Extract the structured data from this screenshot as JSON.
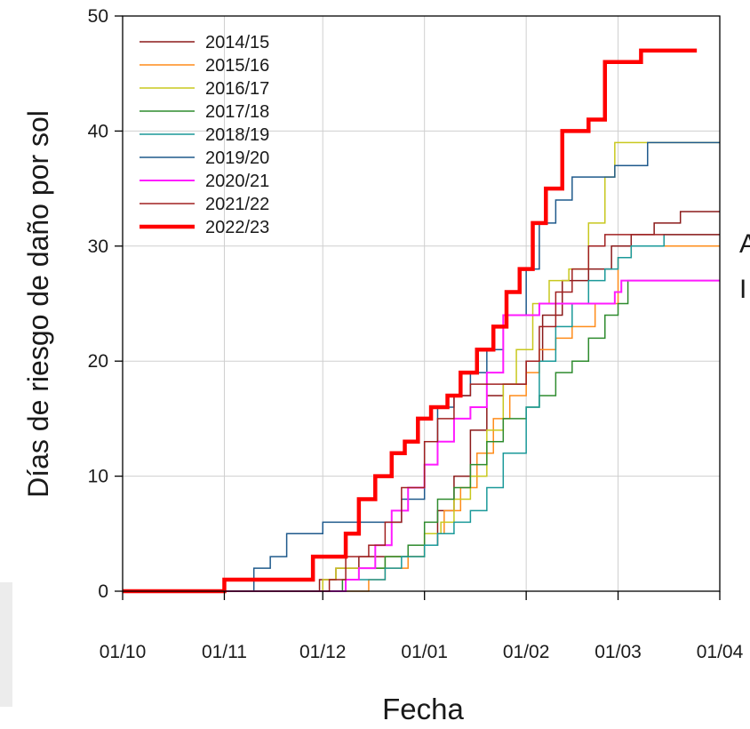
{
  "chart_data": {
    "type": "line",
    "title": "",
    "xlabel": "Fecha",
    "ylabel": "Días de riesgo de daño por sol",
    "xlim": [
      "01/10",
      "01/04"
    ],
    "ylim": [
      0,
      50
    ],
    "x_ticks": [
      "01/10",
      "01/11",
      "01/12",
      "01/01",
      "01/02",
      "01/03",
      "01/04"
    ],
    "y_ticks": [
      0,
      10,
      20,
      30,
      40,
      50
    ],
    "grid": true,
    "legend_position": "top-left",
    "series": [
      {
        "name": "2014/15",
        "color": "#8b1a1a",
        "linewidth": 1.5,
        "points": [
          [
            "01/10",
            0
          ],
          [
            "25/11",
            0
          ],
          [
            "30/11",
            1
          ],
          [
            "05/12",
            2
          ],
          [
            "12/12",
            3
          ],
          [
            "20/12",
            3
          ],
          [
            "25/12",
            3
          ],
          [
            "01/01",
            4
          ],
          [
            "05/01",
            7
          ],
          [
            "10/01",
            10
          ],
          [
            "15/01",
            14
          ],
          [
            "20/01",
            17
          ],
          [
            "25/01",
            18
          ],
          [
            "01/02",
            20
          ],
          [
            "06/02",
            24
          ],
          [
            "12/02",
            27
          ],
          [
            "20/02",
            28
          ],
          [
            "27/02",
            30
          ],
          [
            "05/03",
            31
          ],
          [
            "12/03",
            32
          ],
          [
            "20/03",
            33
          ],
          [
            "01/04",
            33
          ]
        ]
      },
      {
        "name": "2015/16",
        "color": "#ff8c1a",
        "linewidth": 1.5,
        "points": [
          [
            "01/10",
            0
          ],
          [
            "10/12",
            0
          ],
          [
            "15/12",
            1
          ],
          [
            "20/12",
            2
          ],
          [
            "27/12",
            3
          ],
          [
            "01/01",
            5
          ],
          [
            "07/01",
            7
          ],
          [
            "12/01",
            9
          ],
          [
            "17/01",
            12
          ],
          [
            "22/01",
            15
          ],
          [
            "27/01",
            17
          ],
          [
            "01/02",
            19
          ],
          [
            "05/02",
            21
          ],
          [
            "10/02",
            22
          ],
          [
            "15/02",
            23
          ],
          [
            "22/02",
            25
          ],
          [
            "01/03",
            29
          ],
          [
            "05/03",
            30
          ],
          [
            "01/04",
            30
          ]
        ]
      },
      {
        "name": "2016/17",
        "color": "#c8c81e",
        "linewidth": 1.5,
        "points": [
          [
            "01/10",
            0
          ],
          [
            "27/11",
            0
          ],
          [
            "01/12",
            1
          ],
          [
            "05/12",
            2
          ],
          [
            "15/12",
            2
          ],
          [
            "20/12",
            3
          ],
          [
            "25/12",
            3
          ],
          [
            "01/01",
            5
          ],
          [
            "06/01",
            6
          ],
          [
            "10/01",
            8
          ],
          [
            "15/01",
            10
          ],
          [
            "20/01",
            14
          ],
          [
            "25/01",
            18
          ],
          [
            "29/01",
            21
          ],
          [
            "03/02",
            25
          ],
          [
            "08/02",
            27
          ],
          [
            "14/02",
            28
          ],
          [
            "20/02",
            32
          ],
          [
            "25/02",
            36
          ],
          [
            "28/02",
            39
          ],
          [
            "01/04",
            39
          ]
        ]
      },
      {
        "name": "2017/18",
        "color": "#2e8b2e",
        "linewidth": 1.5,
        "points": [
          [
            "01/10",
            0
          ],
          [
            "03/12",
            0
          ],
          [
            "07/12",
            1
          ],
          [
            "12/12",
            2
          ],
          [
            "20/12",
            3
          ],
          [
            "27/12",
            4
          ],
          [
            "01/01",
            6
          ],
          [
            "05/01",
            8
          ],
          [
            "10/01",
            9
          ],
          [
            "15/01",
            11
          ],
          [
            "20/01",
            13
          ],
          [
            "25/01",
            15
          ],
          [
            "01/02",
            16
          ],
          [
            "05/02",
            17
          ],
          [
            "10/02",
            19
          ],
          [
            "15/02",
            20
          ],
          [
            "20/02",
            22
          ],
          [
            "25/02",
            24
          ],
          [
            "01/03",
            25
          ],
          [
            "04/03",
            27
          ],
          [
            "01/04",
            27
          ]
        ]
      },
      {
        "name": "2018/19",
        "color": "#1a9999",
        "linewidth": 1.5,
        "points": [
          [
            "01/10",
            0
          ],
          [
            "05/12",
            0
          ],
          [
            "08/12",
            1
          ],
          [
            "15/12",
            1
          ],
          [
            "20/12",
            2
          ],
          [
            "25/12",
            3
          ],
          [
            "01/01",
            4
          ],
          [
            "05/01",
            5
          ],
          [
            "10/01",
            6
          ],
          [
            "15/01",
            7
          ],
          [
            "20/01",
            9
          ],
          [
            "25/01",
            12
          ],
          [
            "01/02",
            16
          ],
          [
            "05/02",
            20
          ],
          [
            "10/02",
            23
          ],
          [
            "15/02",
            25
          ],
          [
            "20/02",
            27
          ],
          [
            "25/02",
            28
          ],
          [
            "01/03",
            29
          ],
          [
            "05/03",
            30
          ],
          [
            "15/03",
            31
          ],
          [
            "01/04",
            31
          ]
        ]
      },
      {
        "name": "2019/20",
        "color": "#1f5a8c",
        "linewidth": 1.5,
        "points": [
          [
            "01/10",
            0
          ],
          [
            "08/11",
            0
          ],
          [
            "10/11",
            2
          ],
          [
            "15/11",
            3
          ],
          [
            "20/11",
            5
          ],
          [
            "01/12",
            6
          ],
          [
            "10/12",
            6
          ],
          [
            "20/12",
            6
          ],
          [
            "25/12",
            8
          ],
          [
            "01/01",
            13
          ],
          [
            "05/01",
            16
          ],
          [
            "10/01",
            17
          ],
          [
            "15/01",
            19
          ],
          [
            "20/01",
            21
          ],
          [
            "25/01",
            24
          ],
          [
            "01/02",
            28
          ],
          [
            "05/02",
            32
          ],
          [
            "10/02",
            34
          ],
          [
            "15/02",
            36
          ],
          [
            "20/02",
            36
          ],
          [
            "28/02",
            37
          ],
          [
            "05/03",
            37
          ],
          [
            "10/03",
            39
          ],
          [
            "01/04",
            39
          ]
        ]
      },
      {
        "name": "2020/21",
        "color": "#ff1aff",
        "linewidth": 2,
        "points": [
          [
            "01/10",
            0
          ],
          [
            "05/12",
            0
          ],
          [
            "08/12",
            1
          ],
          [
            "12/12",
            2
          ],
          [
            "17/12",
            4
          ],
          [
            "22/12",
            7
          ],
          [
            "27/12",
            9
          ],
          [
            "01/01",
            11
          ],
          [
            "05/01",
            13
          ],
          [
            "10/01",
            15
          ],
          [
            "15/01",
            16
          ],
          [
            "20/01",
            19
          ],
          [
            "25/01",
            24
          ],
          [
            "01/02",
            24
          ],
          [
            "05/02",
            25
          ],
          [
            "15/02",
            25
          ],
          [
            "20/02",
            25
          ],
          [
            "25/02",
            25
          ],
          [
            "28/02",
            26
          ],
          [
            "02/03",
            27
          ],
          [
            "01/04",
            27
          ]
        ]
      },
      {
        "name": "2021/22",
        "color": "#a02020",
        "linewidth": 1.5,
        "points": [
          [
            "01/10",
            0
          ],
          [
            "30/11",
            0
          ],
          [
            "03/12",
            1
          ],
          [
            "08/12",
            3
          ],
          [
            "15/12",
            4
          ],
          [
            "20/12",
            6
          ],
          [
            "25/12",
            9
          ],
          [
            "01/01",
            13
          ],
          [
            "05/01",
            15
          ],
          [
            "10/01",
            17
          ],
          [
            "15/01",
            18
          ],
          [
            "20/01",
            18
          ],
          [
            "25/01",
            18
          ],
          [
            "01/02",
            20
          ],
          [
            "05/02",
            23
          ],
          [
            "10/02",
            26
          ],
          [
            "15/02",
            28
          ],
          [
            "20/02",
            30
          ],
          [
            "25/02",
            31
          ],
          [
            "05/03",
            31
          ],
          [
            "01/04",
            31
          ]
        ]
      },
      {
        "name": "2022/23",
        "color": "#ff0000",
        "linewidth": 4.5,
        "points": [
          [
            "01/10",
            0
          ],
          [
            "31/10",
            0
          ],
          [
            "01/11",
            1
          ],
          [
            "25/11",
            1
          ],
          [
            "28/11",
            3
          ],
          [
            "05/12",
            3
          ],
          [
            "08/12",
            5
          ],
          [
            "12/12",
            8
          ],
          [
            "17/12",
            10
          ],
          [
            "22/12",
            12
          ],
          [
            "26/12",
            13
          ],
          [
            "30/12",
            15
          ],
          [
            "03/01",
            16
          ],
          [
            "08/01",
            17
          ],
          [
            "12/01",
            19
          ],
          [
            "17/01",
            21
          ],
          [
            "22/01",
            23
          ],
          [
            "26/01",
            26
          ],
          [
            "30/01",
            28
          ],
          [
            "03/02",
            32
          ],
          [
            "07/02",
            35
          ],
          [
            "12/02",
            40
          ],
          [
            "20/02",
            41
          ],
          [
            "25/02",
            46
          ],
          [
            "05/03",
            46
          ],
          [
            "08/03",
            47
          ],
          [
            "25/03",
            47
          ]
        ]
      }
    ]
  }
}
